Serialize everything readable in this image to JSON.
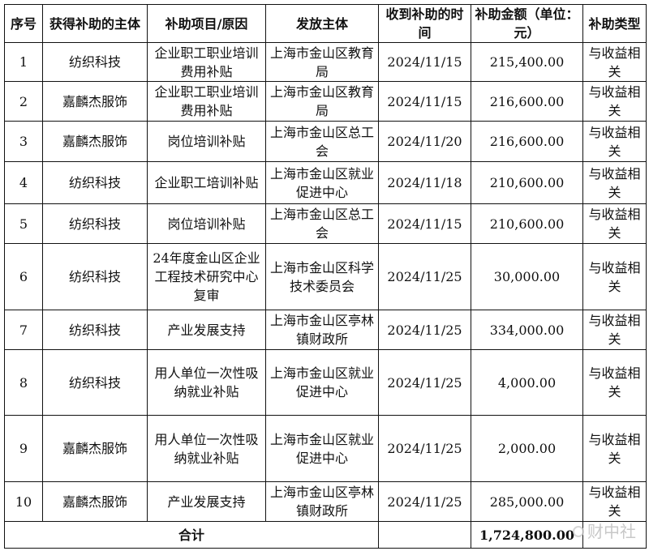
{
  "headers": [
    "序号",
    "获得补助的主体",
    "补助项目/原因",
    "发放主体",
    "收到补助的时间",
    "补助金额（单位：元）",
    "补助类型"
  ],
  "rows": [
    {
      "no": "1",
      "recipient": "纺织科技",
      "item": "企业职工职业培训费用补贴",
      "issuer": "上海市金山区教育局",
      "date": "2024/11/15",
      "amount": "215,400.00",
      "type": "与收益相关"
    },
    {
      "no": "2",
      "recipient": "嘉麟杰服饰",
      "item": "企业职工职业培训费用补贴",
      "issuer": "上海市金山区教育局",
      "date": "2024/11/15",
      "amount": "216,600.00",
      "type": "与收益相关"
    },
    {
      "no": "3",
      "recipient": "嘉麟杰服饰",
      "item": "岗位培训补贴",
      "issuer": "上海市金山区总工会",
      "date": "2024/11/20",
      "amount": "216,600.00",
      "type": "与收益相关"
    },
    {
      "no": "4",
      "recipient": "纺织科技",
      "item": "企业职工培训补贴",
      "issuer": "上海市金山区就业促进中心",
      "date": "2024/11/18",
      "amount": "210,600.00",
      "type": "与收益相关"
    },
    {
      "no": "5",
      "recipient": "纺织科技",
      "item": "岗位培训补贴",
      "issuer": "上海市金山区总工会",
      "date": "2024/11/15",
      "amount": "210,600.00",
      "type": "与收益相关"
    },
    {
      "no": "6",
      "recipient": "纺织科技",
      "item": "24年度金山区企业工程技术研究中心复审",
      "issuer": "上海市金山区科学技术委员会",
      "date": "2024/11/25",
      "amount": "30,000.00",
      "type": "与收益相关"
    },
    {
      "no": "7",
      "recipient": "纺织科技",
      "item": "产业发展支持",
      "issuer": "上海市金山区亭林镇财政所",
      "date": "2024/11/25",
      "amount": "334,000.00",
      "type": "与收益相关"
    },
    {
      "no": "8",
      "recipient": "纺织科技",
      "item": "用人单位一次性吸纳就业补贴",
      "issuer": "上海市金山区就业促进中心",
      "date": "2024/11/25",
      "amount": "4,000.00",
      "type": "与收益相关"
    },
    {
      "no": "9",
      "recipient": "嘉麟杰服饰",
      "item": "用人单位一次性吸纳就业补贴",
      "issuer": "上海市金山区就业促进中心",
      "date": "2024/11/25",
      "amount": "2,000.00",
      "type": "与收益相关"
    },
    {
      "no": "10",
      "recipient": "嘉麟杰服饰",
      "item": "产业发展支持",
      "issuer": "上海市金山区亭林镇财政所",
      "date": "2024/11/25",
      "amount": "285,000.00",
      "type": "与收益相关"
    }
  ],
  "total": {
    "label": "合计",
    "amount": "1,724,800.00"
  },
  "watermark": "财中社"
}
